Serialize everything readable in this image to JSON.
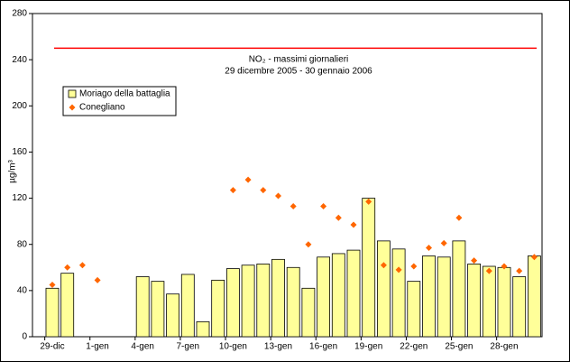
{
  "chart_data": {
    "type": "bar",
    "title": "NO₂ - massimi giornalieri",
    "subtitle": "29 dicembre 2005 - 30 gennaio 2006",
    "y_label": "µg/m³",
    "categories": [
      "29-dic",
      null,
      null,
      "1-gen",
      null,
      null,
      "4-gen",
      null,
      null,
      "7-gen",
      null,
      null,
      "10-gen",
      null,
      null,
      "13-gen",
      null,
      null,
      "16-gen",
      null,
      null,
      "19-gen",
      null,
      null,
      "22-gen",
      null,
      null,
      "25-gen",
      null,
      null,
      "28-gen",
      null,
      null
    ],
    "series": [
      {
        "name": "Moriago della battaglia",
        "type": "bar",
        "color": "#ffff99",
        "values": [
          42,
          55,
          null,
          null,
          null,
          null,
          52,
          48,
          37,
          54,
          13,
          49,
          59,
          62,
          63,
          67,
          60,
          42,
          69,
          72,
          75,
          120,
          83,
          76,
          48,
          70,
          69,
          83,
          63,
          61,
          60,
          52,
          70
        ]
      },
      {
        "name": "Conegliano",
        "type": "scatter",
        "color": "#ff6600",
        "values": [
          45,
          60,
          62,
          49,
          null,
          null,
          null,
          null,
          null,
          null,
          null,
          null,
          127,
          136,
          127,
          122,
          113,
          80,
          113,
          103,
          97,
          117,
          62,
          58,
          61,
          77,
          81,
          103,
          66,
          57,
          61,
          57,
          69
        ]
      }
    ],
    "limit_line": {
      "value": 250,
      "color": "#ff0000"
    },
    "ylim": [
      0,
      280
    ],
    "yticks": [
      0,
      40,
      80,
      120,
      160,
      200,
      240,
      280
    ]
  }
}
